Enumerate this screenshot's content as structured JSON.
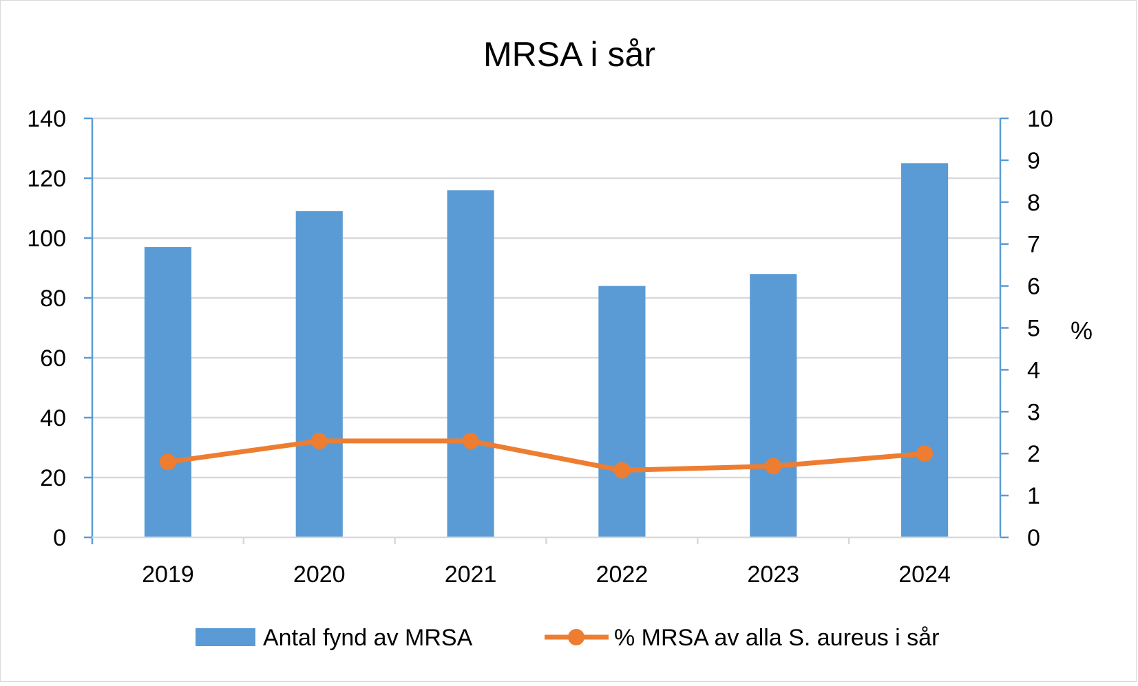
{
  "chart_data": {
    "type": "bar+line",
    "title": "MRSA i sår",
    "categories": [
      "2019",
      "2020",
      "2021",
      "2022",
      "2023",
      "2024"
    ],
    "series": [
      {
        "name": "Antal fynd av MRSA",
        "type": "bar",
        "axis": "left",
        "color": "#5b9bd5",
        "values": [
          97,
          109,
          116,
          84,
          88,
          125
        ]
      },
      {
        "name": "% MRSA av alla S. aureus i sår",
        "type": "line",
        "axis": "right",
        "color": "#ed7d31",
        "marker": "circle",
        "values": [
          1.8,
          2.3,
          2.3,
          1.6,
          1.7,
          2.0
        ]
      }
    ],
    "y_left": {
      "label": "",
      "lim": [
        0,
        140
      ],
      "ticks": [
        "0",
        "20",
        "40",
        "60",
        "80",
        "100",
        "120",
        "140"
      ]
    },
    "y_right": {
      "label": "%",
      "lim": [
        0,
        10
      ],
      "ticks": [
        "0",
        "1",
        "2",
        "3",
        "4",
        "5",
        "6",
        "7",
        "8",
        "9",
        "10"
      ]
    },
    "xlabel": "",
    "grid": true,
    "legend": "bottom",
    "axis_color": "#5b9bd5",
    "grid_color": "#d9d9d9"
  }
}
